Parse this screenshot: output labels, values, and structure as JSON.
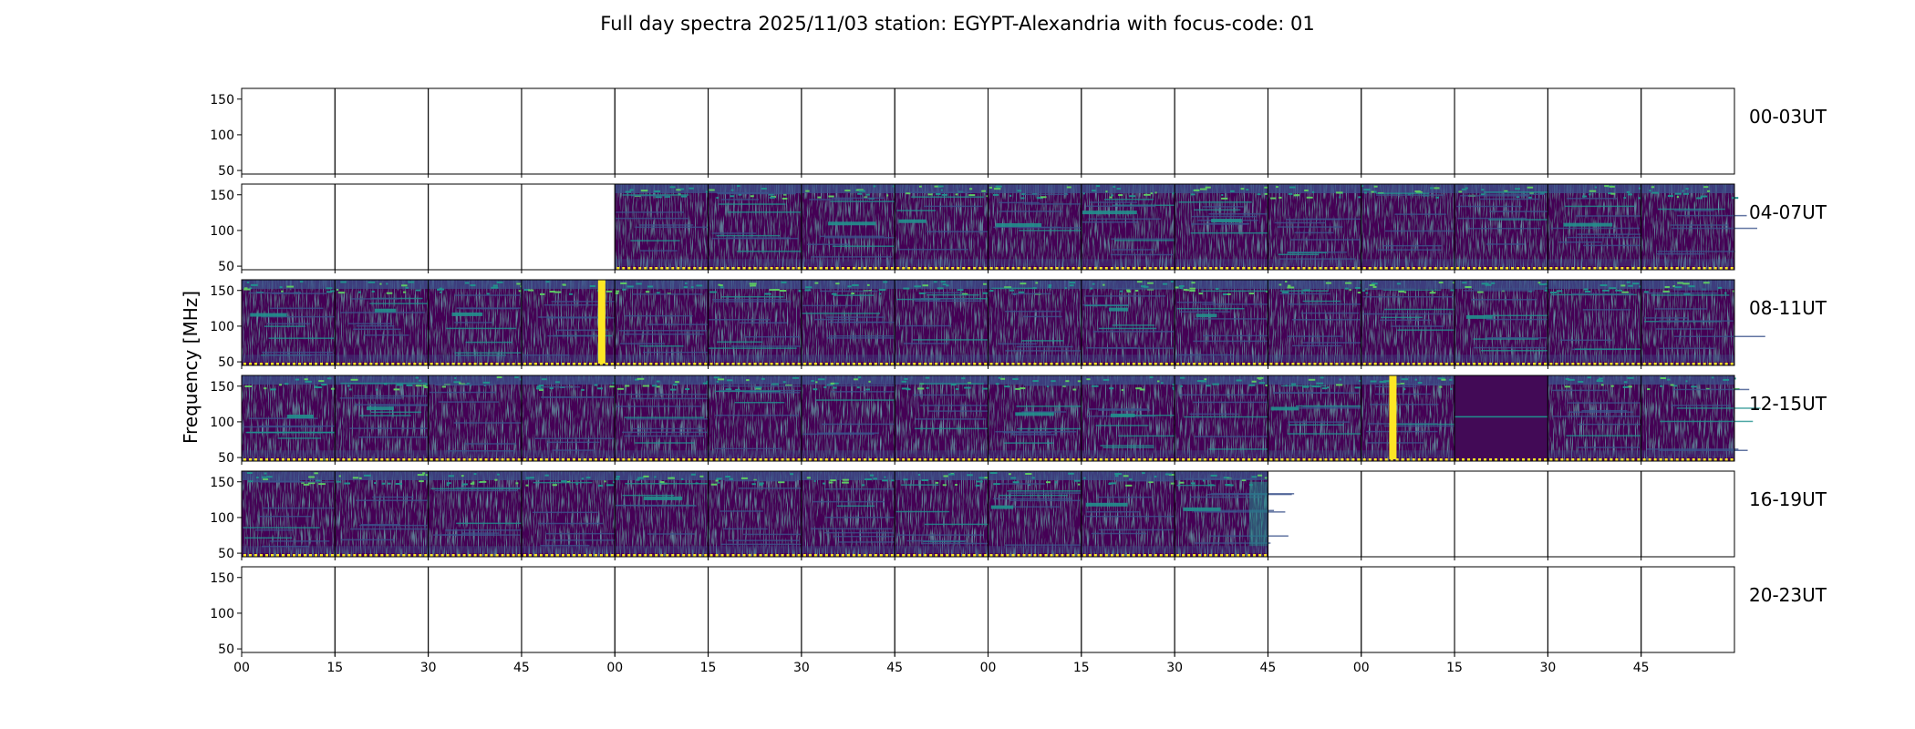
{
  "chart_data": {
    "type": "heatmap",
    "title": "Full day spectra 2025/11/03 station: EGYPT-Alexandria with focus-code: 01",
    "ylabel": "Frequency [MHz]",
    "xlabel": "",
    "ylim": [
      45,
      165
    ],
    "y_ticks": [
      "50",
      "100",
      "150"
    ],
    "y_tick_values": [
      50,
      100,
      150
    ],
    "x_tick_labels": [
      "00",
      "15",
      "30",
      "45",
      "00",
      "15",
      "30",
      "45",
      "00",
      "15",
      "30",
      "45",
      "00",
      "15",
      "30",
      "45"
    ],
    "panels_per_row": 16,
    "minutes_per_panel": 15,
    "colormap": "viridis",
    "colors": {
      "c0": "#440154",
      "c1": "#3b528b",
      "c2": "#21908d",
      "c3": "#5dc963",
      "c4": "#fde725"
    },
    "rows": [
      {
        "label": "00-03UT",
        "data_panels": []
      },
      {
        "label": "04-07UT",
        "data_panels": [
          4,
          5,
          6,
          7,
          8,
          9,
          10,
          11,
          12,
          13,
          14,
          15
        ]
      },
      {
        "label": "08-11UT",
        "data_panels": [
          0,
          1,
          2,
          3,
          4,
          5,
          6,
          7,
          8,
          9,
          10,
          11,
          12,
          13,
          14,
          15
        ]
      },
      {
        "label": "12-15UT",
        "data_panels": [
          0,
          1,
          2,
          3,
          4,
          5,
          6,
          7,
          8,
          9,
          10,
          11,
          12,
          13,
          14,
          15
        ]
      },
      {
        "label": "16-19UT",
        "data_panels": [
          0,
          1,
          2,
          3,
          4,
          5,
          6,
          7,
          8,
          9,
          10
        ]
      },
      {
        "label": "20-23UT",
        "data_panels": []
      }
    ],
    "features": [
      {
        "row": 2,
        "panel": 3,
        "type": "burst",
        "time_fraction": 0.82
      },
      {
        "row": 3,
        "panel": 12,
        "type": "burst",
        "time_fraction": 0.3
      },
      {
        "row": 3,
        "panel": 13,
        "type": "quiet"
      },
      {
        "row": 4,
        "panel": 10,
        "type": "late-rise"
      }
    ]
  }
}
